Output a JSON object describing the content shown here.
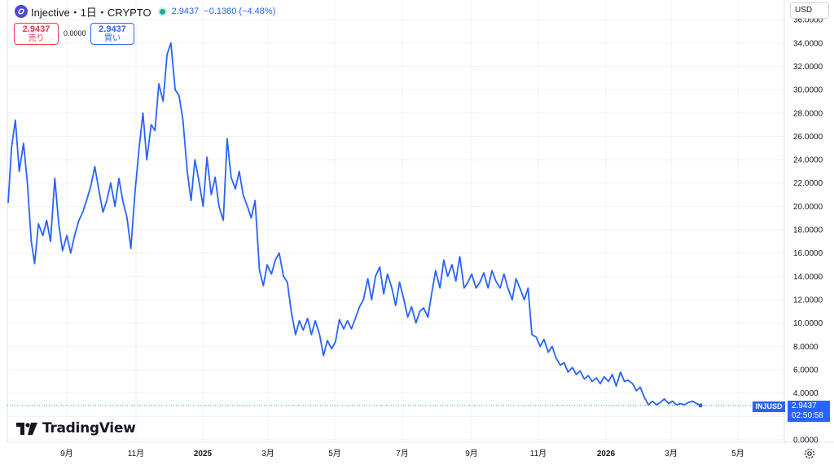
{
  "header": {
    "symbol": "Injective・1日・CRYPTO",
    "price": "2.9437",
    "change": "−0.1380 (−4.48%)"
  },
  "trade": {
    "sell_price": "2.9437",
    "sell_label": "売り",
    "spread": "0.0000",
    "buy_price": "2.9437",
    "buy_label": "買い"
  },
  "currency": "USD",
  "brand": "TradingView",
  "last_price": {
    "ticker": "INJUSD",
    "value": "2.9437",
    "countdown": "02:50:58"
  },
  "colors": {
    "line": "#2962ff",
    "up": "#22ab94",
    "down": "#f23645",
    "grid": "#f0f3fa"
  },
  "chart_data": {
    "type": "line",
    "ylim": [
      0,
      36
    ],
    "y_ticks": [
      "0.0000",
      "2.0000",
      "4.0000",
      "6.0000",
      "8.0000",
      "10.0000",
      "12.0000",
      "14.0000",
      "16.0000",
      "18.0000",
      "20.0000",
      "22.0000",
      "24.0000",
      "26.0000",
      "28.0000",
      "30.0000",
      "32.0000",
      "34.0000",
      "36.0000"
    ],
    "x_ticks": [
      "9月",
      "11月",
      "2025",
      "3月",
      "5月",
      "7月",
      "9月",
      "11月",
      "2026",
      "3月",
      "5月"
    ],
    "x_tick_pos": [
      82,
      167,
      249,
      329,
      411,
      494,
      579,
      661,
      744,
      824,
      906
    ],
    "series": [
      {
        "values": [
          [
            2024.545,
            20.3
          ],
          [
            2024.552,
            25.0
          ],
          [
            2024.56,
            27.4
          ],
          [
            2024.568,
            23.0
          ],
          [
            2024.577,
            25.4
          ],
          [
            2024.585,
            22.0
          ],
          [
            2024.593,
            17.0
          ],
          [
            2024.6,
            15.1
          ],
          [
            2024.608,
            18.5
          ],
          [
            2024.617,
            17.5
          ],
          [
            2024.625,
            18.8
          ],
          [
            2024.633,
            17.0
          ],
          [
            2024.642,
            22.4
          ],
          [
            2024.65,
            18.5
          ],
          [
            2024.658,
            16.2
          ],
          [
            2024.667,
            17.5
          ],
          [
            2024.675,
            16.0
          ],
          [
            2024.683,
            17.5
          ],
          [
            2024.692,
            18.8
          ],
          [
            2024.7,
            19.5
          ],
          [
            2024.708,
            20.5
          ],
          [
            2024.717,
            21.8
          ],
          [
            2024.725,
            23.4
          ],
          [
            2024.733,
            21.5
          ],
          [
            2024.742,
            19.5
          ],
          [
            2024.75,
            20.5
          ],
          [
            2024.758,
            22.0
          ],
          [
            2024.767,
            20.0
          ],
          [
            2024.775,
            22.4
          ],
          [
            2024.783,
            20.5
          ],
          [
            2024.792,
            19.0
          ],
          [
            2024.8,
            16.4
          ],
          [
            2024.808,
            21.0
          ],
          [
            2024.817,
            25.0
          ],
          [
            2024.825,
            28.0
          ],
          [
            2024.833,
            24.0
          ],
          [
            2024.842,
            27.0
          ],
          [
            2024.85,
            26.5
          ],
          [
            2024.858,
            30.5
          ],
          [
            2024.867,
            29.0
          ],
          [
            2024.875,
            33.0
          ],
          [
            2024.883,
            34.0
          ],
          [
            2024.892,
            30.0
          ],
          [
            2024.9,
            29.5
          ],
          [
            2024.908,
            27.4
          ],
          [
            2024.917,
            23.0
          ],
          [
            2024.925,
            20.5
          ],
          [
            2024.933,
            24.0
          ],
          [
            2024.942,
            22.0
          ],
          [
            2024.95,
            20.0
          ],
          [
            2024.958,
            24.2
          ],
          [
            2024.967,
            21.0
          ],
          [
            2024.975,
            22.5
          ],
          [
            2024.983,
            20.0
          ],
          [
            2024.992,
            18.8
          ],
          [
            2025.0,
            25.8
          ],
          [
            2025.008,
            22.5
          ],
          [
            2025.017,
            21.5
          ],
          [
            2025.025,
            23.0
          ],
          [
            2025.033,
            21.0
          ],
          [
            2025.042,
            20.0
          ],
          [
            2025.05,
            19.0
          ],
          [
            2025.058,
            20.5
          ],
          [
            2025.067,
            14.5
          ],
          [
            2025.075,
            13.2
          ],
          [
            2025.083,
            15.0
          ],
          [
            2025.092,
            14.2
          ],
          [
            2025.1,
            15.4
          ],
          [
            2025.108,
            16.0
          ],
          [
            2025.117,
            14.0
          ],
          [
            2025.125,
            13.5
          ],
          [
            2025.133,
            11.0
          ],
          [
            2025.142,
            9.0
          ],
          [
            2025.15,
            10.2
          ],
          [
            2025.158,
            9.4
          ],
          [
            2025.167,
            10.4
          ],
          [
            2025.175,
            9.0
          ],
          [
            2025.183,
            10.2
          ],
          [
            2025.192,
            9.0
          ],
          [
            2025.2,
            7.2
          ],
          [
            2025.208,
            8.5
          ],
          [
            2025.217,
            7.8
          ],
          [
            2025.225,
            8.4
          ],
          [
            2025.233,
            10.3
          ],
          [
            2025.242,
            9.5
          ],
          [
            2025.25,
            10.2
          ],
          [
            2025.258,
            9.5
          ],
          [
            2025.267,
            10.5
          ],
          [
            2025.275,
            11.4
          ],
          [
            2025.283,
            12.0
          ],
          [
            2025.292,
            13.8
          ],
          [
            2025.3,
            12.0
          ],
          [
            2025.308,
            14.0
          ],
          [
            2025.317,
            14.8
          ],
          [
            2025.325,
            12.5
          ],
          [
            2025.333,
            14.2
          ],
          [
            2025.342,
            13.0
          ],
          [
            2025.35,
            11.5
          ],
          [
            2025.358,
            13.5
          ],
          [
            2025.367,
            12.0
          ],
          [
            2025.375,
            10.5
          ],
          [
            2025.383,
            11.4
          ],
          [
            2025.392,
            10.0
          ],
          [
            2025.4,
            11.0
          ],
          [
            2025.408,
            11.3
          ],
          [
            2025.417,
            10.5
          ],
          [
            2025.425,
            12.6
          ],
          [
            2025.433,
            14.5
          ],
          [
            2025.442,
            13.0
          ],
          [
            2025.45,
            15.4
          ],
          [
            2025.458,
            14.0
          ],
          [
            2025.467,
            15.0
          ],
          [
            2025.475,
            13.6
          ],
          [
            2025.483,
            15.7
          ],
          [
            2025.492,
            13.0
          ],
          [
            2025.5,
            13.5
          ],
          [
            2025.508,
            14.2
          ],
          [
            2025.517,
            13.0
          ],
          [
            2025.525,
            13.5
          ],
          [
            2025.533,
            14.3
          ],
          [
            2025.542,
            13.0
          ],
          [
            2025.55,
            14.5
          ],
          [
            2025.558,
            13.6
          ],
          [
            2025.567,
            13.0
          ],
          [
            2025.575,
            14.2
          ],
          [
            2025.583,
            13.0
          ],
          [
            2025.592,
            12.0
          ],
          [
            2025.6,
            13.8
          ],
          [
            2025.608,
            13.0
          ],
          [
            2025.617,
            12.0
          ],
          [
            2025.625,
            13.0
          ],
          [
            2025.633,
            9.0
          ],
          [
            2025.642,
            8.8
          ],
          [
            2025.65,
            8.0
          ],
          [
            2025.658,
            8.6
          ],
          [
            2025.667,
            7.5
          ],
          [
            2025.675,
            8.0
          ],
          [
            2025.683,
            7.0
          ],
          [
            2025.692,
            6.4
          ],
          [
            2025.7,
            6.6
          ],
          [
            2025.708,
            5.8
          ],
          [
            2025.717,
            6.2
          ],
          [
            2025.725,
            5.6
          ],
          [
            2025.733,
            5.9
          ],
          [
            2025.742,
            5.2
          ],
          [
            2025.75,
            5.5
          ],
          [
            2025.758,
            5.0
          ],
          [
            2025.767,
            5.3
          ],
          [
            2025.775,
            4.8
          ],
          [
            2025.783,
            5.4
          ],
          [
            2025.792,
            5.0
          ],
          [
            2025.8,
            5.6
          ],
          [
            2025.808,
            4.6
          ],
          [
            2025.817,
            5.8
          ],
          [
            2025.825,
            5.0
          ],
          [
            2025.833,
            5.1
          ],
          [
            2025.842,
            4.8
          ],
          [
            2025.85,
            4.2
          ],
          [
            2025.858,
            4.5
          ],
          [
            2025.867,
            3.6
          ],
          [
            2025.875,
            3.0
          ],
          [
            2025.883,
            3.3
          ],
          [
            2025.892,
            3.0
          ],
          [
            2025.9,
            3.2
          ],
          [
            2025.908,
            3.5
          ],
          [
            2025.917,
            3.1
          ],
          [
            2025.925,
            3.3
          ],
          [
            2025.933,
            3.0
          ],
          [
            2025.942,
            3.1
          ],
          [
            2025.95,
            3.0
          ],
          [
            2025.958,
            3.2
          ],
          [
            2025.967,
            3.3
          ],
          [
            2025.975,
            3.1
          ],
          [
            2025.983,
            2.94
          ]
        ]
      }
    ]
  }
}
